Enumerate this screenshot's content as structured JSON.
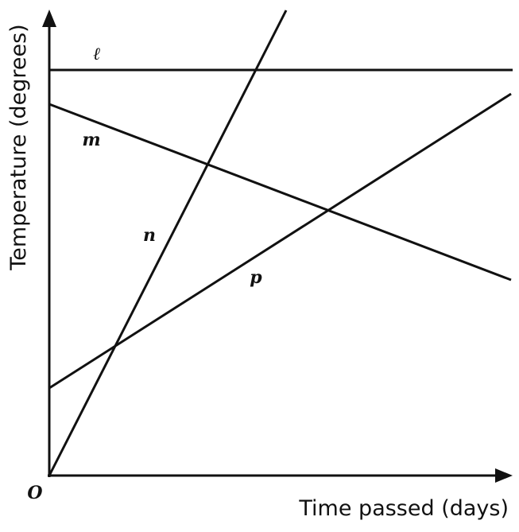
{
  "axes": {
    "x_label": "Time passed (days)",
    "y_label": "Temperature (degrees)",
    "origin": "O"
  },
  "lines": [
    {
      "label": "ℓ"
    },
    {
      "label": "m"
    },
    {
      "label": "n"
    },
    {
      "label": "p"
    }
  ]
}
